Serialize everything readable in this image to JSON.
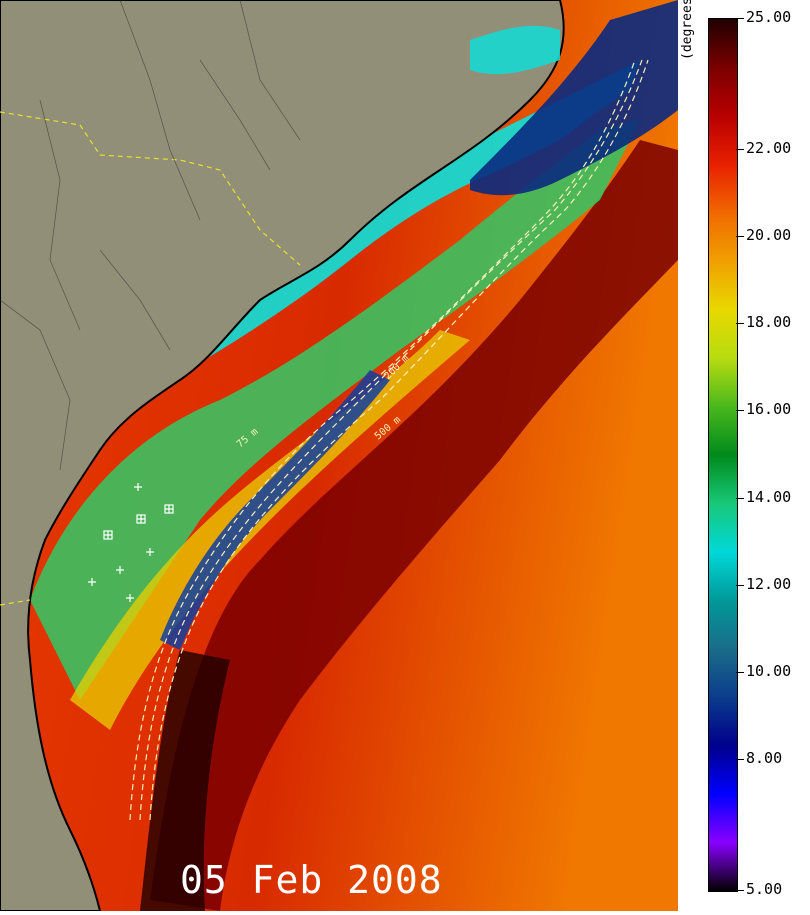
{
  "map": {
    "date": "05 Feb 2008",
    "land_color": "#928f79",
    "border_color": "#000000",
    "state_line_color": "#e7e22a",
    "isobath_color": "#f5f0b8",
    "isobath_labels": [
      "75 m",
      "200 m",
      "500 m"
    ],
    "station_marker": "station-cross-icon",
    "buoy_marker": "buoy-square-icon"
  },
  "colorbar": {
    "units": "(degrees-C)",
    "min": 5.0,
    "max": 25.0,
    "ticks": [
      "25.00",
      "22.00",
      "20.00",
      "18.00",
      "16.00",
      "14.00",
      "12.00",
      "10.00",
      "8.00",
      "5.00"
    ],
    "tick_values": [
      25,
      22,
      20,
      18,
      16,
      14,
      12,
      10,
      8,
      5
    ],
    "colors": [
      "#000000",
      "#8a00ff",
      "#0000ff",
      "#00008c",
      "#0b3c8c",
      "#1a6d8a",
      "#009999",
      "#00d8d8",
      "#18c878",
      "#008a1c",
      "#4ab81c",
      "#b8dc10",
      "#e8d800",
      "#f0a000",
      "#f06800",
      "#e82000",
      "#b80000",
      "#7a0000",
      "#200000"
    ]
  }
}
